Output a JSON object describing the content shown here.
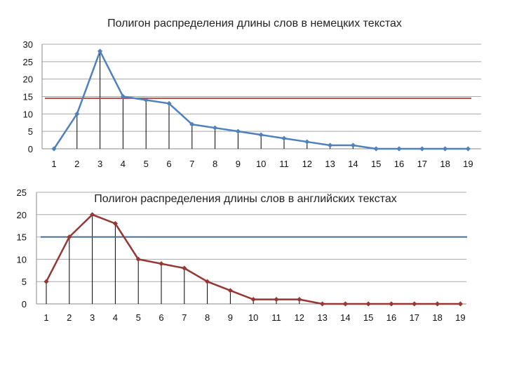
{
  "chart_data": [
    {
      "type": "line",
      "title": "Полигон распределения длины слов  в немецких текстах",
      "xlabel": "",
      "ylabel": "",
      "categories": [
        "1",
        "2",
        "3",
        "4",
        "5",
        "6",
        "7",
        "8",
        "9",
        "10",
        "11",
        "12",
        "13",
        "14",
        "15",
        "16",
        "17",
        "18",
        "19"
      ],
      "values": [
        0,
        10,
        28,
        15,
        14,
        13,
        7,
        6,
        5,
        4,
        3,
        2,
        1,
        1,
        0,
        0,
        0,
        0,
        0
      ],
      "reference_line": 14.5,
      "ylim": [
        0,
        30
      ],
      "yticks": [
        "0",
        "5",
        "10",
        "15",
        "20",
        "25",
        "30"
      ],
      "grid": true,
      "drop_lines": true,
      "colors": {
        "series": "#4f81bd",
        "reference": "#c0504d"
      }
    },
    {
      "type": "line",
      "title": "Полигон распределения длины слов  в английских текстах",
      "xlabel": "",
      "ylabel": "",
      "categories": [
        "1",
        "2",
        "3",
        "4",
        "5",
        "6",
        "7",
        "8",
        "9",
        "10",
        "11",
        "12",
        "13",
        "14",
        "15",
        "16",
        "17",
        "18",
        "19"
      ],
      "values": [
        5,
        15,
        20,
        18,
        10,
        9,
        8,
        5,
        3,
        1,
        1,
        1,
        0,
        0,
        0,
        0,
        0,
        0,
        0
      ],
      "reference_line": 15,
      "ylim": [
        0,
        25
      ],
      "yticks": [
        "0",
        "5",
        "10",
        "15",
        "20",
        "25"
      ],
      "grid": true,
      "drop_lines": true,
      "colors": {
        "series": "#953735",
        "reference": "#4a6c8c"
      }
    }
  ]
}
